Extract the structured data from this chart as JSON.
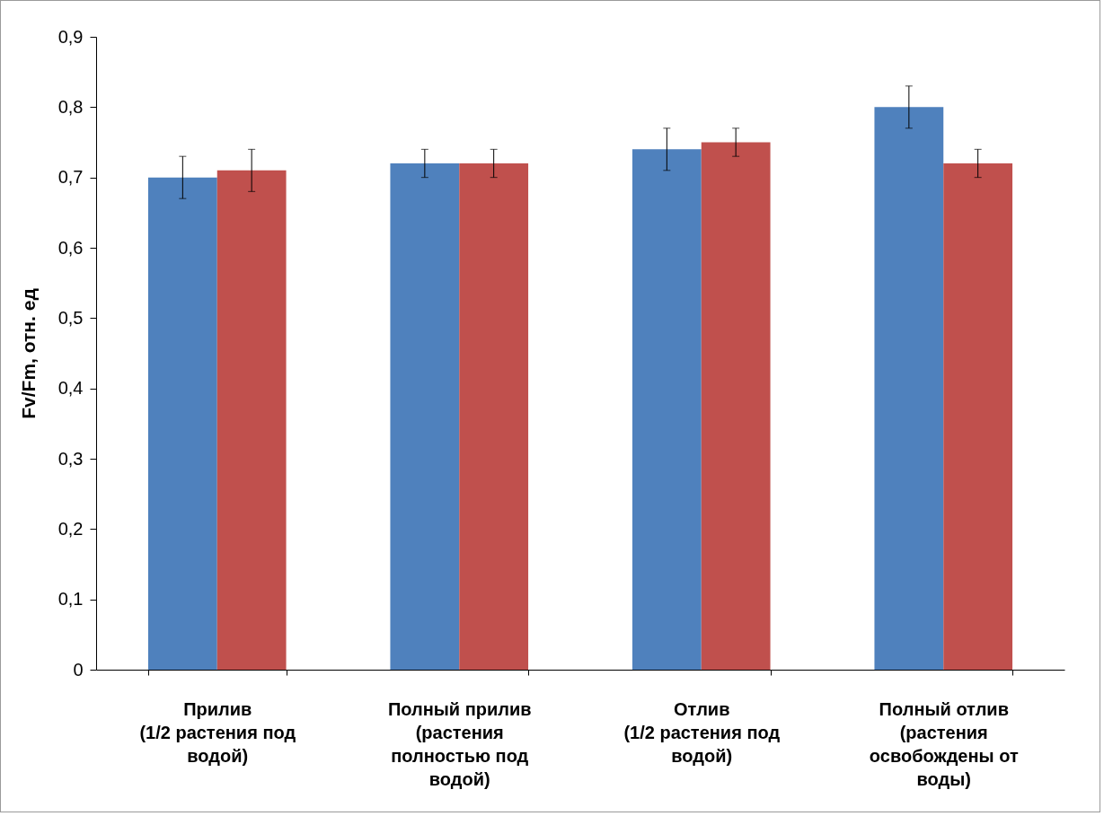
{
  "chart_data": {
    "type": "bar",
    "ylabel": "Fv/Fm, отн. ед",
    "categories": [
      "Прилив (1/2 растения под водой)",
      "Полный прилив (растения полностью под водой)",
      "Отлив (1/2 растения под водой)",
      "Полный отлив (растения освобождены от воды)"
    ],
    "series": [
      {
        "color": "#4f81bd",
        "values": [
          0.7,
          0.72,
          0.74,
          0.8
        ],
        "errors": [
          0.03,
          0.02,
          0.03,
          0.03
        ]
      },
      {
        "color": "#c0504d",
        "values": [
          0.71,
          0.72,
          0.75,
          0.72
        ],
        "errors": [
          0.03,
          0.02,
          0.02,
          0.02
        ]
      }
    ],
    "ylim": [
      0,
      0.9
    ],
    "yticks": [
      0,
      {
        "value": 0.1,
        "label": "0,1"
      },
      {
        "value": 0.2,
        "label": "0,2"
      },
      {
        "value": 0.3,
        "label": "0,3"
      },
      {
        "value": 0.4,
        "label": "0,4"
      },
      {
        "value": 0.5,
        "label": "0,5"
      },
      {
        "value": 0.6,
        "label": "0,6"
      },
      {
        "value": 0.7,
        "label": "0,7"
      },
      {
        "value": 0.8,
        "label": "0,8"
      },
      {
        "value": 0.9,
        "label": "0,9"
      }
    ],
    "grid": false,
    "legend": false
  }
}
